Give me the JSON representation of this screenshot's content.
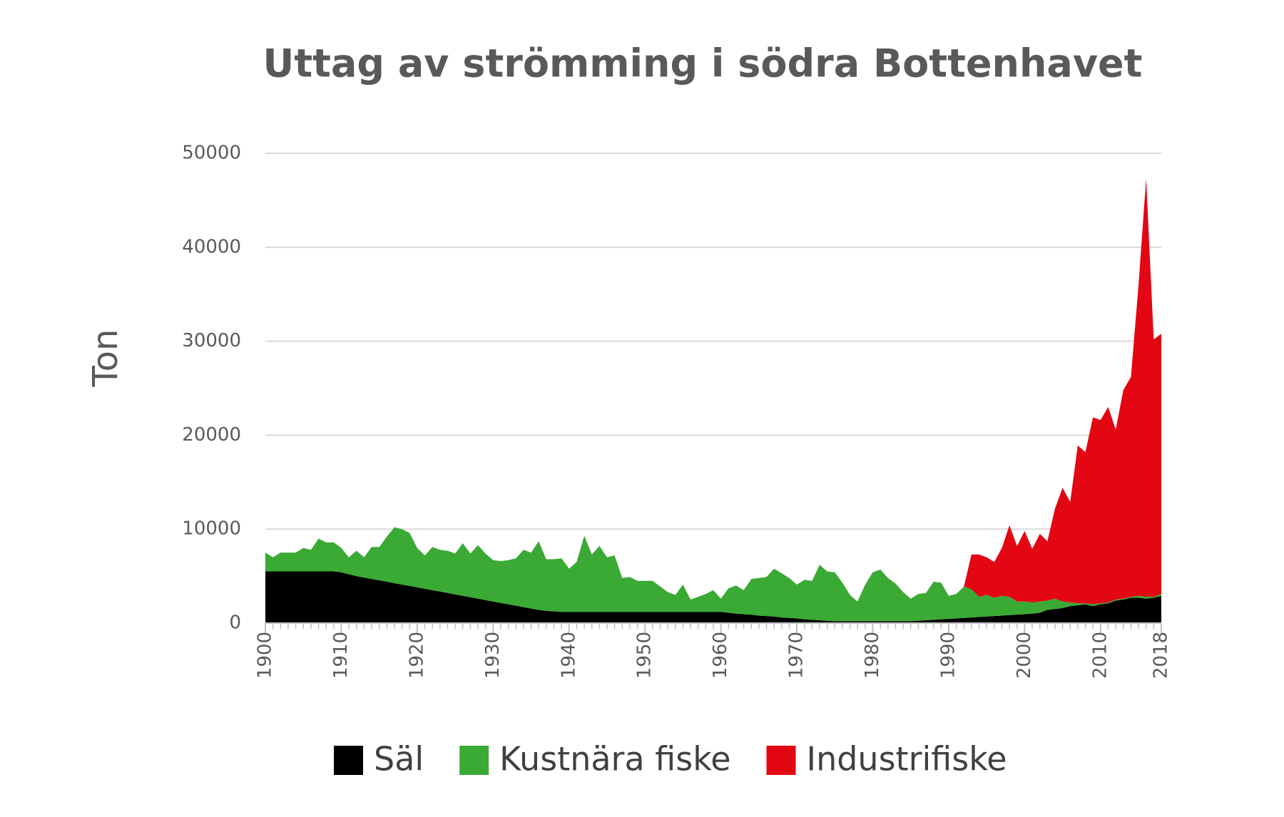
{
  "chart_data": {
    "type": "stacked_area",
    "title": "Uttag av strömming i södra Bottenhavet",
    "y_label": "Ton",
    "x": [
      1900,
      1901,
      1902,
      1903,
      1904,
      1905,
      1906,
      1907,
      1908,
      1909,
      1910,
      1911,
      1912,
      1913,
      1914,
      1915,
      1916,
      1917,
      1918,
      1919,
      1920,
      1921,
      1922,
      1923,
      1924,
      1925,
      1926,
      1927,
      1928,
      1929,
      1930,
      1931,
      1932,
      1933,
      1934,
      1935,
      1936,
      1937,
      1938,
      1939,
      1940,
      1941,
      1942,
      1943,
      1944,
      1945,
      1946,
      1947,
      1948,
      1949,
      1950,
      1951,
      1952,
      1953,
      1954,
      1955,
      1956,
      1957,
      1958,
      1959,
      1960,
      1961,
      1962,
      1963,
      1964,
      1965,
      1966,
      1967,
      1968,
      1969,
      1970,
      1971,
      1972,
      1973,
      1974,
      1975,
      1976,
      1977,
      1978,
      1979,
      1980,
      1981,
      1982,
      1983,
      1984,
      1985,
      1986,
      1987,
      1988,
      1989,
      1990,
      1991,
      1992,
      1993,
      1994,
      1995,
      1996,
      1997,
      1998,
      1999,
      2000,
      2001,
      2002,
      2003,
      2004,
      2005,
      2006,
      2007,
      2008,
      2009,
      2010,
      2011,
      2012,
      2013,
      2014,
      2015,
      2016,
      2017,
      2018
    ],
    "series": [
      {
        "name": "Säl",
        "color": "#000000",
        "values": [
          5500,
          5500,
          5500,
          5500,
          5500,
          5500,
          5500,
          5500,
          5500,
          5500,
          5400,
          5200,
          5000,
          4850,
          4700,
          4550,
          4400,
          4250,
          4100,
          3950,
          3800,
          3650,
          3500,
          3350,
          3200,
          3050,
          2900,
          2750,
          2600,
          2450,
          2300,
          2150,
          2000,
          1850,
          1700,
          1550,
          1400,
          1300,
          1250,
          1200,
          1200,
          1200,
          1200,
          1200,
          1200,
          1200,
          1200,
          1200,
          1200,
          1200,
          1200,
          1200,
          1200,
          1200,
          1200,
          1200,
          1200,
          1200,
          1200,
          1200,
          1200,
          1100,
          1000,
          950,
          900,
          800,
          750,
          700,
          600,
          550,
          500,
          400,
          350,
          300,
          250,
          200,
          200,
          200,
          200,
          200,
          200,
          200,
          200,
          200,
          200,
          200,
          250,
          300,
          350,
          400,
          450,
          500,
          550,
          600,
          650,
          700,
          750,
          800,
          850,
          900,
          950,
          1000,
          1100,
          1400,
          1500,
          1600,
          1800,
          1900,
          2000,
          1800,
          2000,
          2100,
          2400,
          2500,
          2700,
          2700,
          2600,
          2700,
          2900
        ]
      },
      {
        "name": "Kustnära fiske",
        "color": "#3aaa35",
        "values": [
          2000,
          1500,
          2000,
          2000,
          2000,
          2500,
          2300,
          3500,
          3100,
          3100,
          2600,
          1800,
          2700,
          2150,
          3400,
          3550,
          4800,
          5950,
          5900,
          5650,
          4200,
          3550,
          4600,
          4450,
          4500,
          4350,
          5600,
          4650,
          5700,
          4950,
          4400,
          4450,
          4700,
          5050,
          6100,
          5950,
          7300,
          5500,
          5550,
          5700,
          4600,
          5300,
          8100,
          6100,
          7000,
          5800,
          6000,
          3600,
          3700,
          3300,
          3300,
          3300,
          2700,
          2100,
          1800,
          2900,
          1300,
          1600,
          1900,
          2300,
          1400,
          2600,
          3000,
          2550,
          3800,
          4000,
          4150,
          5100,
          4700,
          4250,
          3600,
          4200,
          4150,
          5900,
          5250,
          5200,
          4100,
          2800,
          2100,
          3900,
          5200,
          5500,
          4600,
          4000,
          3100,
          2400,
          2850,
          2900,
          4050,
          3900,
          2450,
          2600,
          3350,
          3000,
          2150,
          2300,
          1950,
          2100,
          1950,
          1400,
          1350,
          1200,
          1200,
          1000,
          1100,
          700,
          400,
          200,
          100,
          200,
          100,
          100,
          100,
          100,
          100,
          200,
          200,
          100,
          200
        ]
      },
      {
        "name": "Industrifiske",
        "color": "#e30613",
        "values": [
          null,
          null,
          null,
          null,
          null,
          null,
          null,
          null,
          null,
          null,
          null,
          null,
          null,
          null,
          null,
          null,
          null,
          null,
          null,
          null,
          null,
          null,
          null,
          null,
          null,
          null,
          null,
          null,
          null,
          null,
          null,
          null,
          null,
          null,
          null,
          null,
          null,
          null,
          null,
          null,
          null,
          null,
          null,
          null,
          null,
          null,
          null,
          null,
          null,
          null,
          null,
          null,
          null,
          null,
          null,
          null,
          null,
          null,
          null,
          null,
          null,
          null,
          null,
          null,
          null,
          null,
          null,
          null,
          null,
          null,
          null,
          null,
          null,
          null,
          null,
          null,
          null,
          null,
          null,
          null,
          null,
          null,
          null,
          null,
          null,
          null,
          null,
          null,
          null,
          null,
          null,
          null,
          0,
          3700,
          4500,
          4000,
          3800,
          5100,
          7600,
          5900,
          7500,
          5700,
          7200,
          6300,
          9600,
          12100,
          10700,
          16800,
          16100,
          19900,
          19500,
          20800,
          18100,
          22200,
          23400,
          33100,
          44500,
          27400,
          27700
        ]
      }
    ],
    "xlim": [
      1900,
      2018
    ],
    "xticks": [
      1900,
      1910,
      1920,
      1930,
      1940,
      1950,
      1960,
      1970,
      1980,
      1990,
      2000,
      2010,
      2018
    ],
    "ylim": [
      0,
      50000
    ],
    "yticks": [
      0,
      10000,
      20000,
      30000,
      40000,
      50000
    ],
    "grid": true,
    "legend": "bottom"
  }
}
